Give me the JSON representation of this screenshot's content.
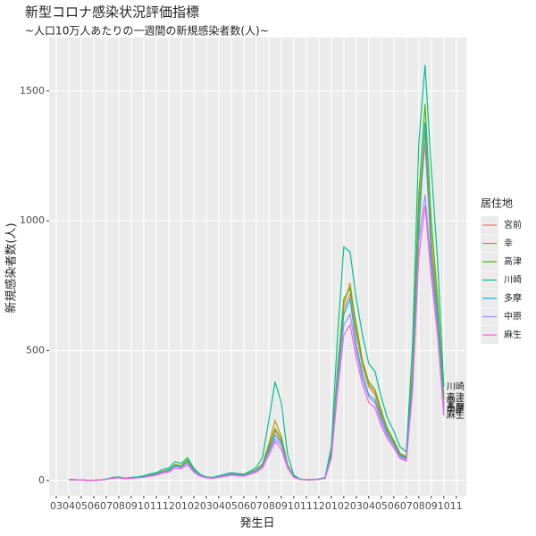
{
  "chart_data": {
    "type": "line",
    "title": "新型コロナ感染状況評価指標",
    "subtitle": "~人口10万人あたりの一週間の新規感染者数(人)~",
    "x_label": "発生日",
    "y_label": "新規感染者数(人)",
    "legend_title": "居住地",
    "legend": "right",
    "grid": true,
    "xlim": [
      -0.57,
      32.8
    ],
    "ylim": [
      -59,
      1706
    ],
    "yticks": [
      0,
      500,
      1000,
      1500
    ],
    "xticks": [
      {
        "value": 0,
        "label": "03"
      },
      {
        "value": 1,
        "label": "04"
      },
      {
        "value": 2,
        "label": "05"
      },
      {
        "value": 3,
        "label": "06"
      },
      {
        "value": 4,
        "label": "07"
      },
      {
        "value": 5,
        "label": "08"
      },
      {
        "value": 6,
        "label": "09"
      },
      {
        "value": 7,
        "label": "10"
      },
      {
        "value": 8,
        "label": "11"
      },
      {
        "value": 9,
        "label": "12"
      },
      {
        "value": 10,
        "label": "01"
      },
      {
        "value": 11,
        "label": "02"
      },
      {
        "value": 12,
        "label": "03"
      },
      {
        "value": 13,
        "label": "04"
      },
      {
        "value": 14,
        "label": "05"
      },
      {
        "value": 15,
        "label": "06"
      },
      {
        "value": 16,
        "label": "07"
      },
      {
        "value": 17,
        "label": "08"
      },
      {
        "value": 18,
        "label": "09"
      },
      {
        "value": 19,
        "label": "10"
      },
      {
        "value": 20,
        "label": "11"
      },
      {
        "value": 21,
        "label": "12"
      },
      {
        "value": 22,
        "label": "01"
      },
      {
        "value": 23,
        "label": "02"
      },
      {
        "value": 24,
        "label": "03"
      },
      {
        "value": 25,
        "label": "04"
      },
      {
        "value": 26,
        "label": "05"
      },
      {
        "value": 27,
        "label": "06"
      },
      {
        "value": 28,
        "label": "07"
      },
      {
        "value": 29,
        "label": "08"
      },
      {
        "value": 30,
        "label": "09"
      },
      {
        "value": 31,
        "label": "10"
      },
      {
        "value": 32,
        "label": "11"
      }
    ],
    "x": [
      1,
      1.5,
      2,
      2.5,
      3,
      3.5,
      4,
      4.5,
      5,
      5.5,
      6,
      6.5,
      7,
      7.5,
      8,
      8.5,
      9,
      9.5,
      10,
      10.5,
      11,
      11.5,
      12,
      12.5,
      13,
      13.5,
      14,
      14.5,
      15,
      15.5,
      16,
      16.5,
      17,
      17.5,
      18,
      18.5,
      19,
      19.5,
      20,
      20.5,
      21,
      21.5,
      22,
      22.5,
      23,
      23.5,
      24,
      24.5,
      25,
      25.5,
      26,
      26.5,
      27,
      27.5,
      28,
      28.5,
      29,
      29.5,
      30,
      30.5,
      31
    ],
    "series": [
      {
        "name": "宮前",
        "color": "#F8766D",
        "values": [
          3,
          3,
          2,
          1,
          1,
          2,
          5,
          9,
          12,
          8,
          10,
          12,
          16,
          20,
          26,
          35,
          42,
          58,
          55,
          72,
          40,
          20,
          12,
          10,
          15,
          20,
          26,
          22,
          20,
          30,
          42,
          62,
          125,
          190,
          150,
          60,
          15,
          5,
          3,
          3,
          5,
          10,
          100,
          420,
          660,
          720,
          560,
          440,
          360,
          330,
          250,
          190,
          150,
          100,
          88,
          420,
          1020,
          1300,
          880,
          640,
          290
        ]
      },
      {
        "name": "幸",
        "color": "#C49A00",
        "values": [
          3,
          3,
          2,
          1,
          1,
          2,
          5,
          10,
          13,
          8,
          10,
          13,
          15,
          22,
          25,
          36,
          40,
          62,
          56,
          78,
          42,
          21,
          12,
          10,
          16,
          21,
          25,
          23,
          21,
          31,
          40,
          65,
          140,
          230,
          170,
          62,
          16,
          5,
          3,
          3,
          5,
          11,
          105,
          410,
          680,
          760,
          580,
          450,
          370,
          340,
          260,
          200,
          155,
          105,
          92,
          410,
          1050,
          1350,
          930,
          660,
          310
        ]
      },
      {
        "name": "高津",
        "color": "#53B400",
        "values": [
          3,
          3,
          2,
          1,
          1,
          2,
          5,
          10,
          12,
          8,
          11,
          12,
          15,
          21,
          26,
          34,
          41,
          60,
          57,
          80,
          41,
          20,
          12,
          10,
          15,
          21,
          26,
          23,
          20,
          30,
          41,
          60,
          130,
          200,
          160,
          60,
          15,
          5,
          3,
          3,
          5,
          10,
          110,
          430,
          700,
          740,
          600,
          460,
          380,
          350,
          270,
          195,
          150,
          100,
          90,
          430,
          1100,
          1450,
          1000,
          700,
          320
        ]
      },
      {
        "name": "川崎",
        "color": "#00C094",
        "values": [
          3,
          3,
          2,
          1,
          1,
          2,
          5,
          12,
          14,
          9,
          12,
          14,
          18,
          25,
          30,
          42,
          48,
          72,
          66,
          88,
          48,
          24,
          14,
          12,
          18,
          24,
          30,
          27,
          24,
          36,
          50,
          90,
          230,
          380,
          300,
          100,
          20,
          6,
          3,
          3,
          6,
          12,
          130,
          560,
          900,
          880,
          700,
          560,
          450,
          420,
          320,
          240,
          190,
          130,
          110,
          520,
          1300,
          1600,
          1200,
          850,
          360
        ]
      },
      {
        "name": "多摩",
        "color": "#00B6EB",
        "values": [
          3,
          3,
          2,
          1,
          1,
          2,
          5,
          9,
          11,
          8,
          9,
          11,
          14,
          19,
          24,
          33,
          38,
          57,
          52,
          70,
          38,
          19,
          11,
          9,
          14,
          19,
          24,
          21,
          19,
          28,
          38,
          57,
          115,
          175,
          145,
          57,
          14,
          5,
          3,
          3,
          5,
          9,
          95,
          390,
          640,
          700,
          520,
          410,
          330,
          310,
          240,
          180,
          140,
          95,
          85,
          380,
          950,
          1380,
          860,
          620,
          280
        ]
      },
      {
        "name": "中原",
        "color": "#A58AFF",
        "values": [
          3,
          3,
          2,
          1,
          1,
          2,
          4,
          9,
          11,
          7,
          9,
          11,
          13,
          18,
          22,
          31,
          36,
          54,
          50,
          68,
          36,
          18,
          11,
          9,
          13,
          18,
          22,
          20,
          18,
          27,
          36,
          54,
          108,
          160,
          135,
          54,
          13,
          4,
          3,
          3,
          4,
          9,
          90,
          370,
          600,
          640,
          500,
          390,
          320,
          300,
          225,
          170,
          135,
          90,
          80,
          360,
          920,
          1100,
          820,
          590,
          270
        ]
      },
      {
        "name": "麻生",
        "color": "#FB61D7",
        "values": [
          3,
          3,
          2,
          1,
          1,
          2,
          4,
          8,
          10,
          7,
          8,
          10,
          12,
          16,
          20,
          28,
          32,
          48,
          45,
          60,
          32,
          16,
          10,
          8,
          12,
          16,
          20,
          18,
          16,
          24,
          32,
          48,
          96,
          150,
          120,
          48,
          12,
          4,
          3,
          3,
          4,
          8,
          85,
          340,
          560,
          600,
          470,
          370,
          300,
          280,
          210,
          160,
          125,
          85,
          75,
          340,
          860,
          1060,
          780,
          560,
          250
        ]
      }
    ]
  }
}
